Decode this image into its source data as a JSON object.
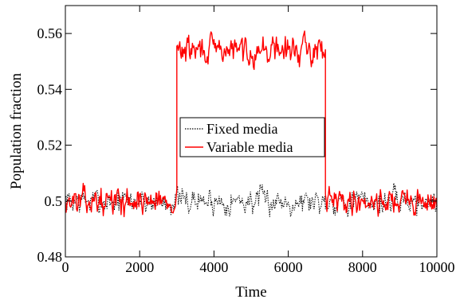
{
  "chart_data": {
    "type": "line",
    "title": "",
    "xlabel": "Time",
    "ylabel": "Population fraction",
    "xlim": [
      0,
      10000
    ],
    "ylim": [
      0.48,
      0.57
    ],
    "x_ticks": [
      0,
      2000,
      4000,
      6000,
      8000,
      10000
    ],
    "x_tick_labels": [
      "0",
      "2000",
      "4000",
      "6000",
      "8000",
      "10000"
    ],
    "y_ticks": [
      0.48,
      0.5,
      0.52,
      0.54,
      0.56
    ],
    "y_tick_labels": [
      "0.48",
      "0.5",
      "0.52",
      "0.54",
      "0.56"
    ],
    "grid": false,
    "legend_placement": "center",
    "sampling_step": 20,
    "series": [
      {
        "name": "Fixed media",
        "color": "#000000",
        "style": "dotted",
        "segments": [
          {
            "x_start": 0,
            "x_end": 10000,
            "mean": 0.5,
            "amplitude": 0.011,
            "seed": 7
          }
        ]
      },
      {
        "name": "Variable media",
        "color": "#ff0000",
        "style": "solid",
        "segments": [
          {
            "x_start": 0,
            "x_end": 3000,
            "mean": 0.5,
            "amplitude": 0.011,
            "seed": 13
          },
          {
            "x_start": 3000,
            "x_end": 7000,
            "mean": 0.554,
            "amplitude": 0.012,
            "seed": 29
          },
          {
            "x_start": 7000,
            "x_end": 10000,
            "mean": 0.5,
            "amplitude": 0.011,
            "seed": 41
          }
        ]
      }
    ]
  }
}
